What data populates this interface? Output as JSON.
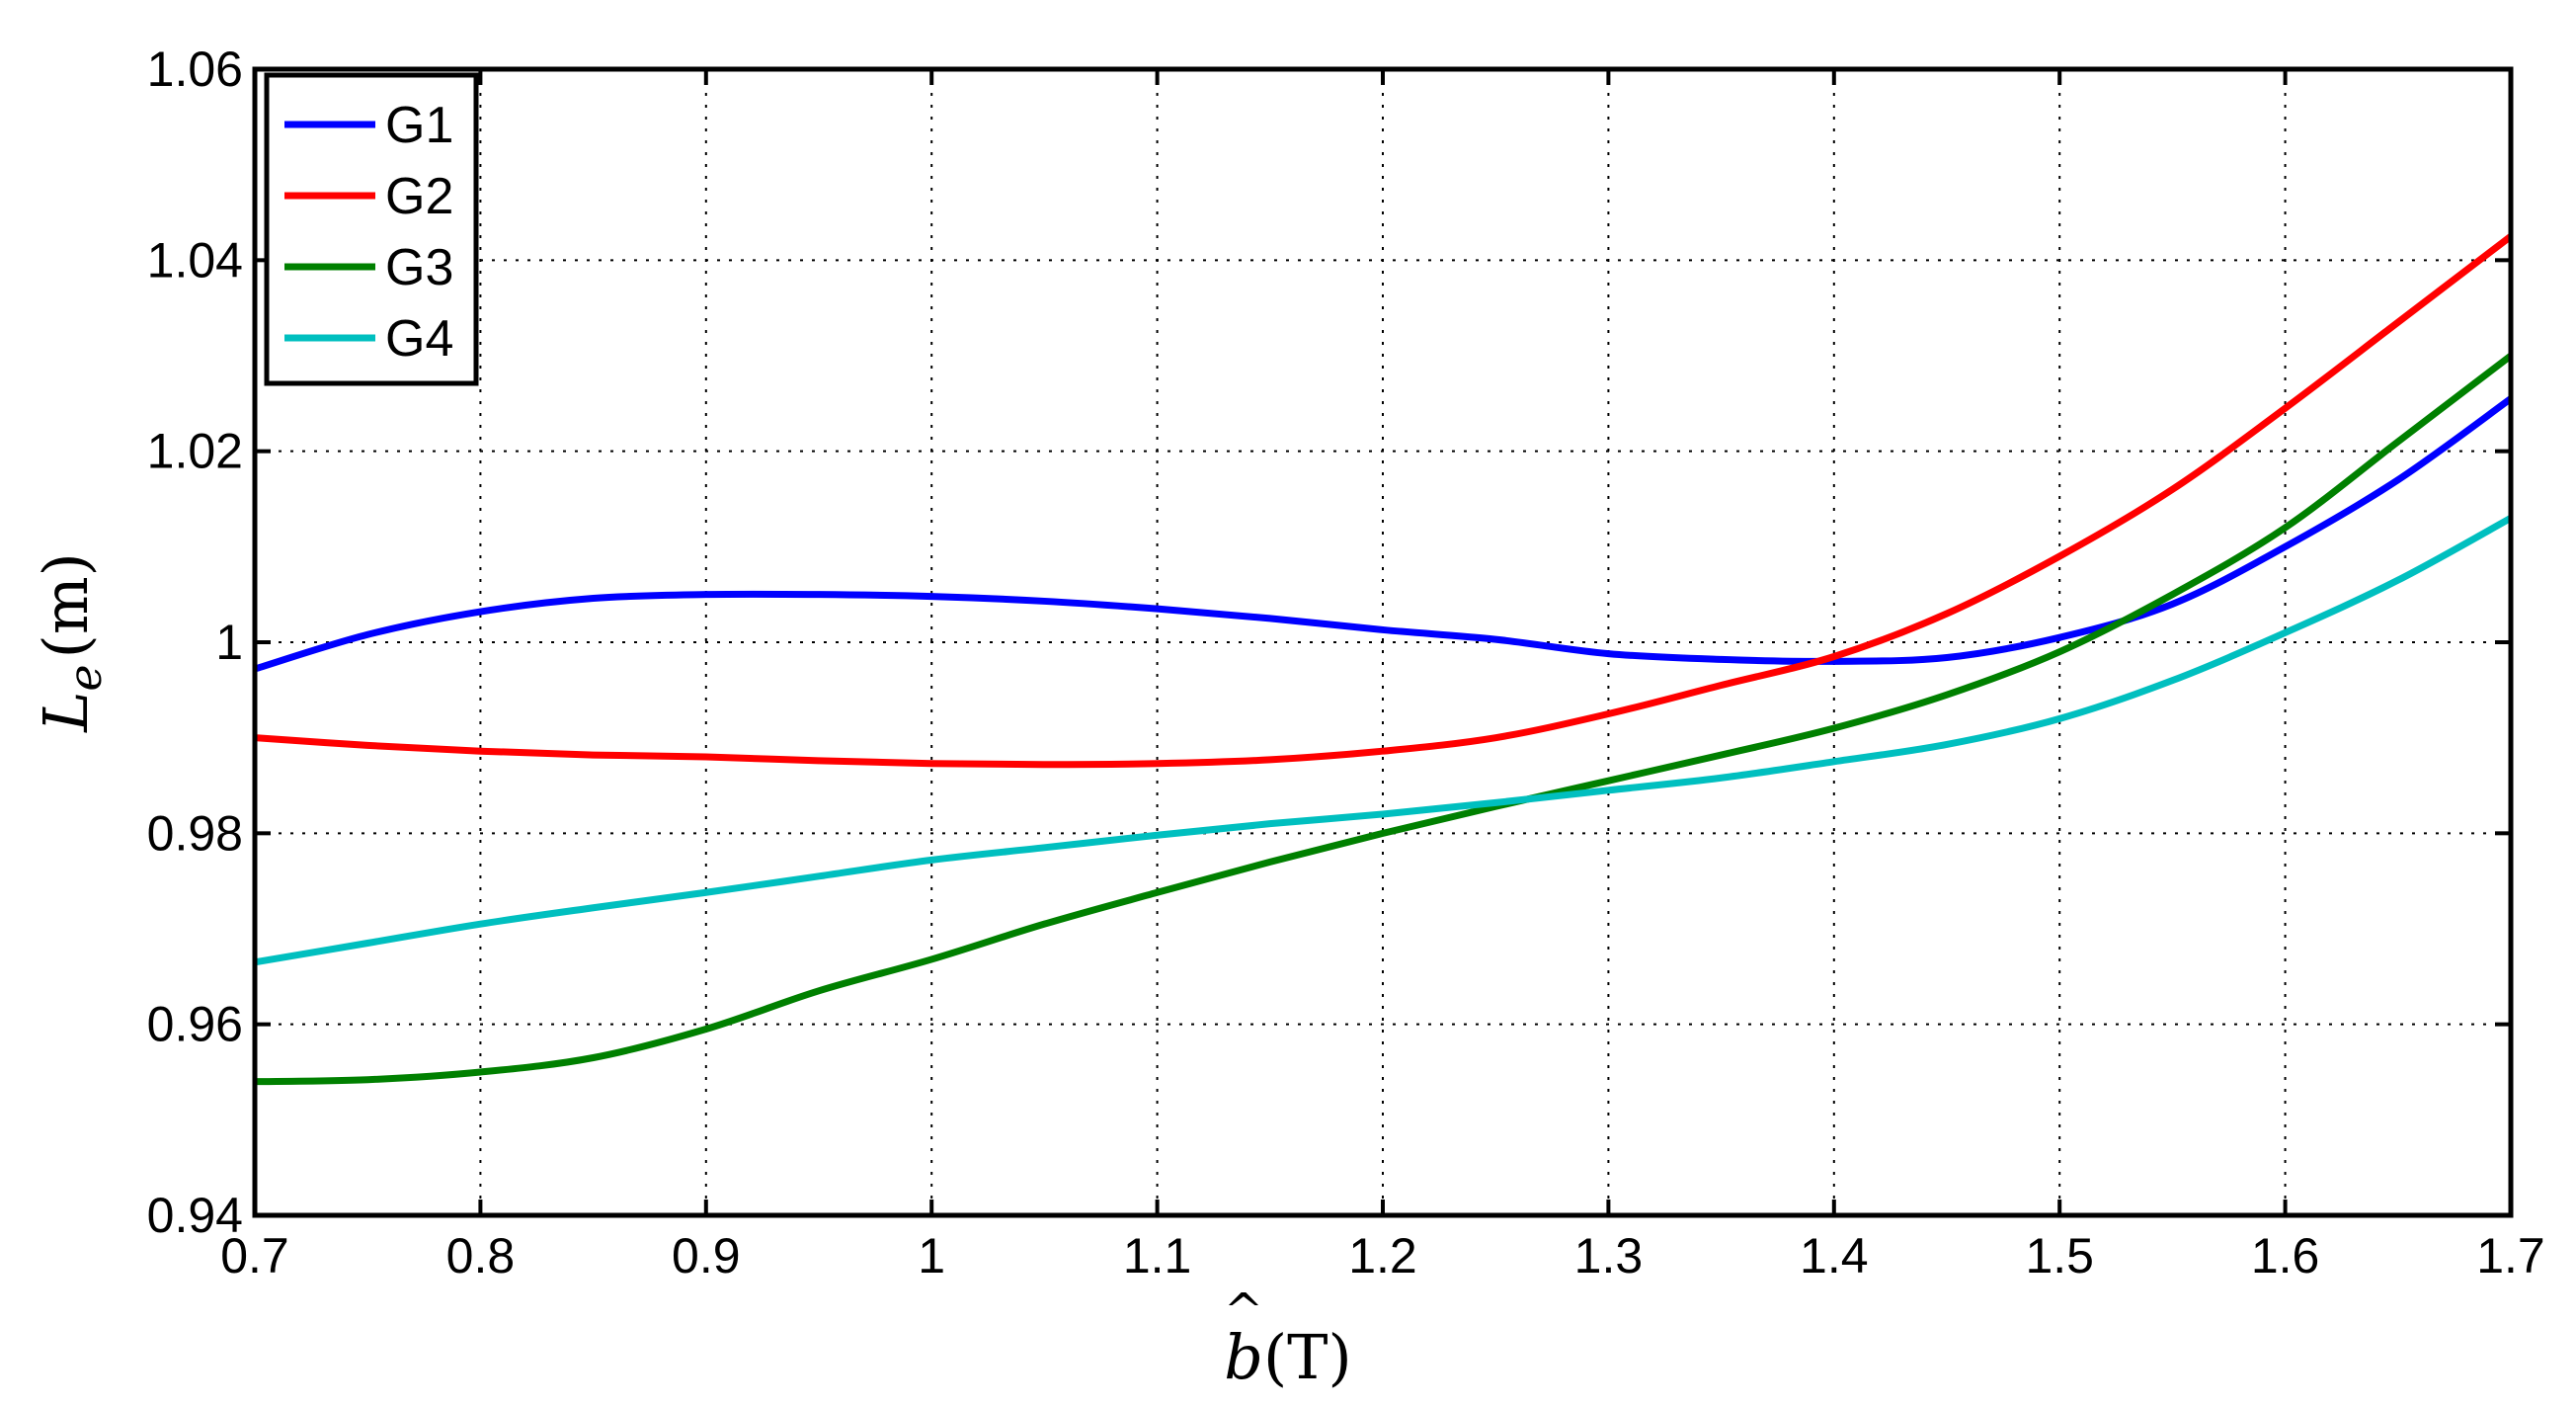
{
  "chart_data": {
    "type": "line",
    "xlabel": "b̂(T)",
    "ylabel": "Le(m)",
    "xlim": [
      0.7,
      1.7
    ],
    "ylim": [
      0.94,
      1.06
    ],
    "xticks": [
      0.7,
      0.8,
      0.9,
      1.0,
      1.1,
      1.2,
      1.3,
      1.4,
      1.5,
      1.6,
      1.7
    ],
    "xtick_labels": [
      "0.7",
      "0.8",
      "0.9",
      "1",
      "1.1",
      "1.2",
      "1.3",
      "1.4",
      "1.5",
      "1.6",
      "1.7"
    ],
    "yticks": [
      0.94,
      0.96,
      0.98,
      1.0,
      1.02,
      1.04,
      1.06
    ],
    "ytick_labels": [
      "0.94",
      "0.96",
      "0.98",
      "1",
      "1.02",
      "1.04",
      "1.06"
    ],
    "grid": true,
    "legend_position": "top-left",
    "x": [
      0.7,
      0.75,
      0.8,
      0.85,
      0.9,
      0.95,
      1.0,
      1.05,
      1.1,
      1.15,
      1.2,
      1.25,
      1.3,
      1.35,
      1.4,
      1.45,
      1.5,
      1.55,
      1.6,
      1.65,
      1.7
    ],
    "series": [
      {
        "name": "G1",
        "color": "#0000ff",
        "values": [
          0.9972,
          1.0008,
          1.0032,
          1.0046,
          1.005,
          1.005,
          1.0048,
          1.0043,
          1.0035,
          1.0025,
          1.0013,
          1.0003,
          0.9988,
          0.9982,
          0.998,
          0.9984,
          1.0005,
          1.004,
          1.01,
          1.017,
          1.0255
        ]
      },
      {
        "name": "G2",
        "color": "#ff0000",
        "values": [
          0.99,
          0.9892,
          0.9886,
          0.9882,
          0.988,
          0.9876,
          0.9873,
          0.9872,
          0.9873,
          0.9877,
          0.9886,
          0.99,
          0.9925,
          0.9955,
          0.9985,
          1.003,
          1.009,
          1.016,
          1.0245,
          1.0335,
          1.0425
        ]
      },
      {
        "name": "G3",
        "color": "#008000",
        "values": [
          0.954,
          0.9542,
          0.955,
          0.9565,
          0.9595,
          0.9635,
          0.9668,
          0.9705,
          0.9738,
          0.977,
          0.98,
          0.9828,
          0.9855,
          0.9882,
          0.991,
          0.9945,
          0.999,
          1.005,
          1.012,
          1.021,
          1.03
        ]
      },
      {
        "name": "G4",
        "color": "#00bfbf",
        "values": [
          0.9665,
          0.9685,
          0.9705,
          0.9722,
          0.9738,
          0.9755,
          0.9772,
          0.9785,
          0.9798,
          0.981,
          0.982,
          0.9832,
          0.9845,
          0.9858,
          0.9875,
          0.9893,
          0.992,
          0.996,
          1.001,
          1.0065,
          1.013
        ]
      }
    ]
  }
}
